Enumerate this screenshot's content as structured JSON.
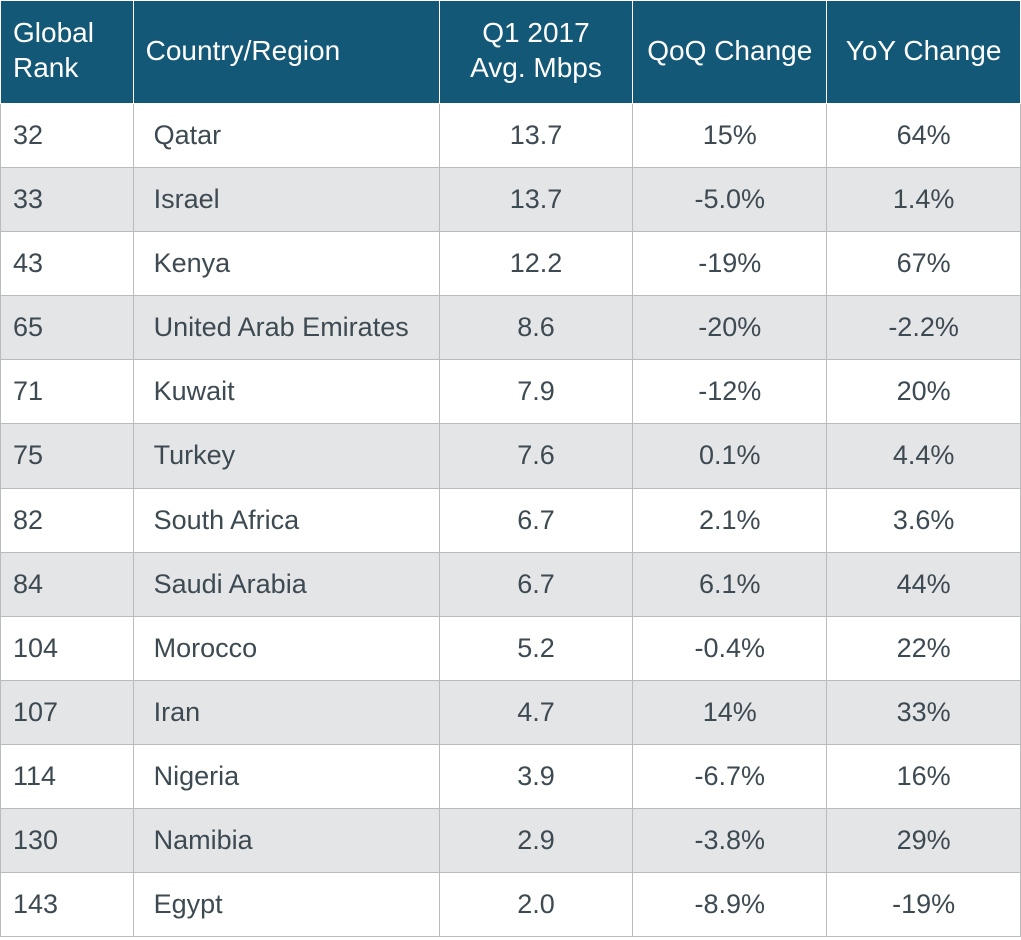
{
  "table": {
    "type": "table",
    "column_widths_pct": [
      13,
      30,
      19,
      19,
      19
    ],
    "header_bg": "#145877",
    "header_fg": "#ffffff",
    "cell_fg": "#3d4a52",
    "row_alt_bg": "#e4e5e7",
    "border_color": "#b9bbbd",
    "header_fontsize": 28,
    "cell_fontsize": 27,
    "columns": [
      {
        "key": "rank",
        "label": "Global Rank",
        "align": "left",
        "class": "col-rank"
      },
      {
        "key": "country",
        "label": "Country/Region",
        "align": "left",
        "class": "col-country"
      },
      {
        "key": "mbps",
        "label": "Q1 2017 Avg. Mbps",
        "align": "center",
        "class": "col-mbps"
      },
      {
        "key": "qoq",
        "label": "QoQ Change",
        "align": "center",
        "class": "col-qoq"
      },
      {
        "key": "yoy",
        "label": "YoY Change",
        "align": "center",
        "class": "col-yoy"
      }
    ],
    "rows": [
      {
        "rank": "32",
        "country": "Qatar",
        "mbps": "13.7",
        "qoq": "15%",
        "yoy": "64%"
      },
      {
        "rank": "33",
        "country": "Israel",
        "mbps": "13.7",
        "qoq": "-5.0%",
        "yoy": "1.4%"
      },
      {
        "rank": "43",
        "country": "Kenya",
        "mbps": "12.2",
        "qoq": "-19%",
        "yoy": "67%"
      },
      {
        "rank": "65",
        "country": "United Arab Emirates",
        "mbps": "8.6",
        "qoq": "-20%",
        "yoy": "-2.2%"
      },
      {
        "rank": "71",
        "country": "Kuwait",
        "mbps": "7.9",
        "qoq": "-12%",
        "yoy": "20%"
      },
      {
        "rank": "75",
        "country": "Turkey",
        "mbps": "7.6",
        "qoq": "0.1%",
        "yoy": "4.4%"
      },
      {
        "rank": "82",
        "country": "South Africa",
        "mbps": "6.7",
        "qoq": "2.1%",
        "yoy": "3.6%"
      },
      {
        "rank": "84",
        "country": "Saudi Arabia",
        "mbps": "6.7",
        "qoq": "6.1%",
        "yoy": "44%"
      },
      {
        "rank": "104",
        "country": "Morocco",
        "mbps": "5.2",
        "qoq": "-0.4%",
        "yoy": "22%"
      },
      {
        "rank": "107",
        "country": "Iran",
        "mbps": "4.7",
        "qoq": "14%",
        "yoy": "33%"
      },
      {
        "rank": "114",
        "country": "Nigeria",
        "mbps": "3.9",
        "qoq": "-6.7%",
        "yoy": "16%"
      },
      {
        "rank": "130",
        "country": "Namibia",
        "mbps": "2.9",
        "qoq": "-3.8%",
        "yoy": "29%"
      },
      {
        "rank": "143",
        "country": "Egypt",
        "mbps": "2.0",
        "qoq": "-8.9%",
        "yoy": "-19%"
      }
    ]
  }
}
